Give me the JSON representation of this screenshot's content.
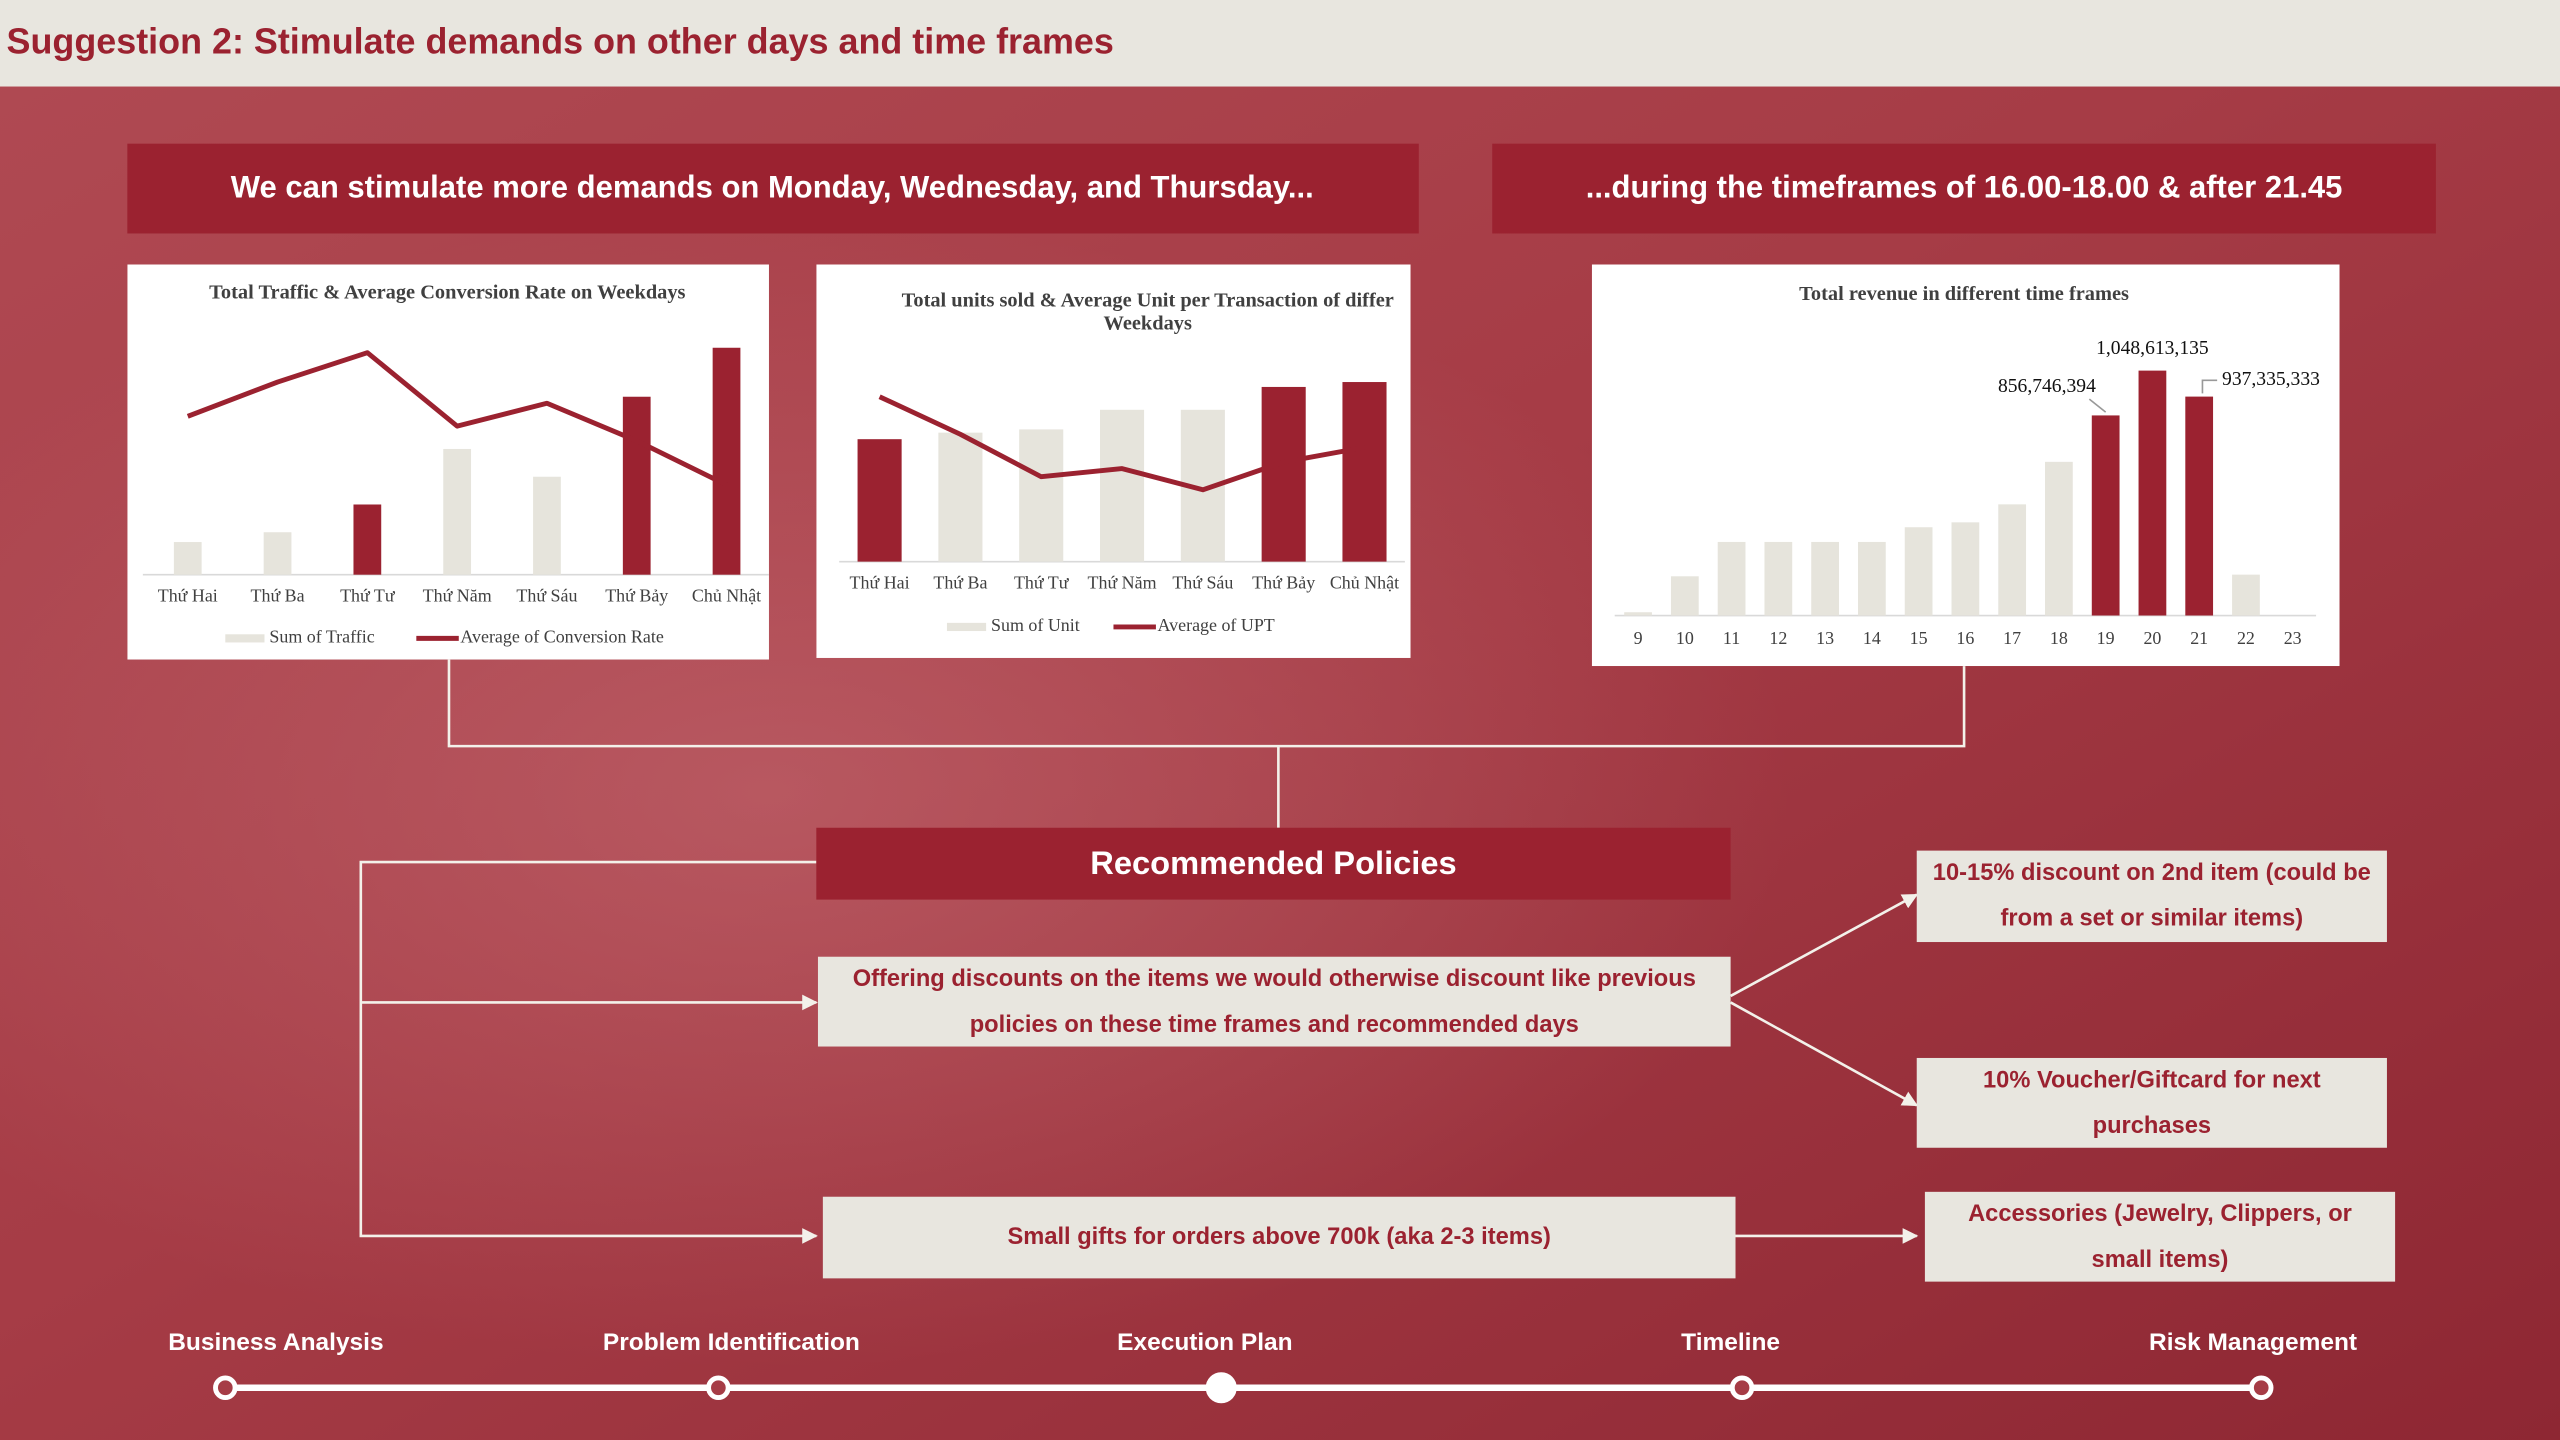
{
  "header": {
    "title": "Suggestion 2: Stimulate demands on other days and time frames"
  },
  "banners": [
    "We can stimulate more demands on Monday, Wednesday, and Thursday...",
    "...during the timeframes of 16.00-18.00 & after 21.45"
  ],
  "chart_data": [
    {
      "type": "combo",
      "title": [
        "Total Traffic & Average Conversion Rate on Weekdays"
      ],
      "categories": [
        "Thứ Hai",
        "Thứ Ba",
        "Thứ Tư",
        "Thứ Năm",
        "Thứ Sáu",
        "Thứ Bảy",
        "Chủ Nhật"
      ],
      "series": [
        {
          "name": "Sum of Traffic",
          "type": "bar",
          "color": "#e6e4dc",
          "values": [
            20,
            26,
            43,
            77,
            60,
            109,
            139
          ],
          "colors": [
            "#e6e4dc",
            "#e6e4dc",
            "#9b2230",
            "#e6e4dc",
            "#e6e4dc",
            "#9b2230",
            "#9b2230"
          ]
        },
        {
          "name": "Average of Conversion Rate",
          "type": "line",
          "color": "#9b2230",
          "values": [
            97,
            118,
            136,
            91,
            105,
            82,
            55
          ]
        }
      ]
    },
    {
      "type": "combo",
      "title": [
        "Total units sold & Average Unit per Transaction of differ",
        "Weekdays"
      ],
      "categories": [
        "Thứ Hai",
        "Thứ Ba",
        "Thứ Tư",
        "Thứ Năm",
        "Thứ Sáu",
        "Thứ Bảy",
        "Chủ Nhật"
      ],
      "series": [
        {
          "name": "Sum of Unit",
          "type": "bar",
          "color": "#e6e4dc",
          "values": [
            75,
            79,
            81,
            93,
            93,
            107,
            110
          ],
          "colors": [
            "#9b2230",
            "#e6e4dc",
            "#e6e4dc",
            "#e6e4dc",
            "#e6e4dc",
            "#9b2230",
            "#9b2230"
          ]
        },
        {
          "name": "Average of UPT",
          "type": "line",
          "color": "#9b2230",
          "values": [
            101,
            78,
            52,
            57,
            44,
            61,
            70
          ]
        }
      ]
    },
    {
      "type": "bar",
      "title": [
        "Total revenue in different time frames"
      ],
      "categories": [
        9,
        10,
        11,
        12,
        13,
        14,
        15,
        16,
        17,
        18,
        19,
        20,
        21,
        22,
        23
      ],
      "values": [
        14000000,
        168000000,
        315000000,
        315000000,
        315000000,
        315000000,
        378000000,
        399000000,
        476000000,
        658000000,
        856746394,
        1048613135,
        937335333,
        175000000,
        0
      ],
      "value_labels": [
        null,
        null,
        null,
        null,
        null,
        null,
        null,
        null,
        null,
        null,
        "856,746,394",
        "1,048,613,135",
        "937,335,333",
        null,
        null
      ],
      "colors": [
        "#e6e4dc",
        "#e6e4dc",
        "#e6e4dc",
        "#e6e4dc",
        "#e6e4dc",
        "#e6e4dc",
        "#e6e4dc",
        "#e6e4dc",
        "#e6e4dc",
        "#e6e4dc",
        "#9b2230",
        "#9b2230",
        "#9b2230",
        "#e6e4dc",
        "#e6e4dc"
      ]
    }
  ],
  "policies": {
    "title": "Recommended Policies",
    "items": [
      {
        "text": "Offering discounts on the items we would otherwise discount like previous policies on these time frames and recommended days",
        "details": [
          "10-15% discount on 2nd item (could be from a set or similar items)",
          "10% Voucher/Giftcard for next purchases"
        ]
      },
      {
        "text": "Small gifts for orders above 700k (aka 2-3 items)",
        "details": [
          "Accessories (Jewelry, Clippers, or small items)"
        ]
      }
    ]
  },
  "timeline": {
    "steps": [
      "Business Analysis",
      "Problem Identification",
      "Execution Plan",
      "Timeline",
      "Risk Management"
    ],
    "current": 2
  }
}
